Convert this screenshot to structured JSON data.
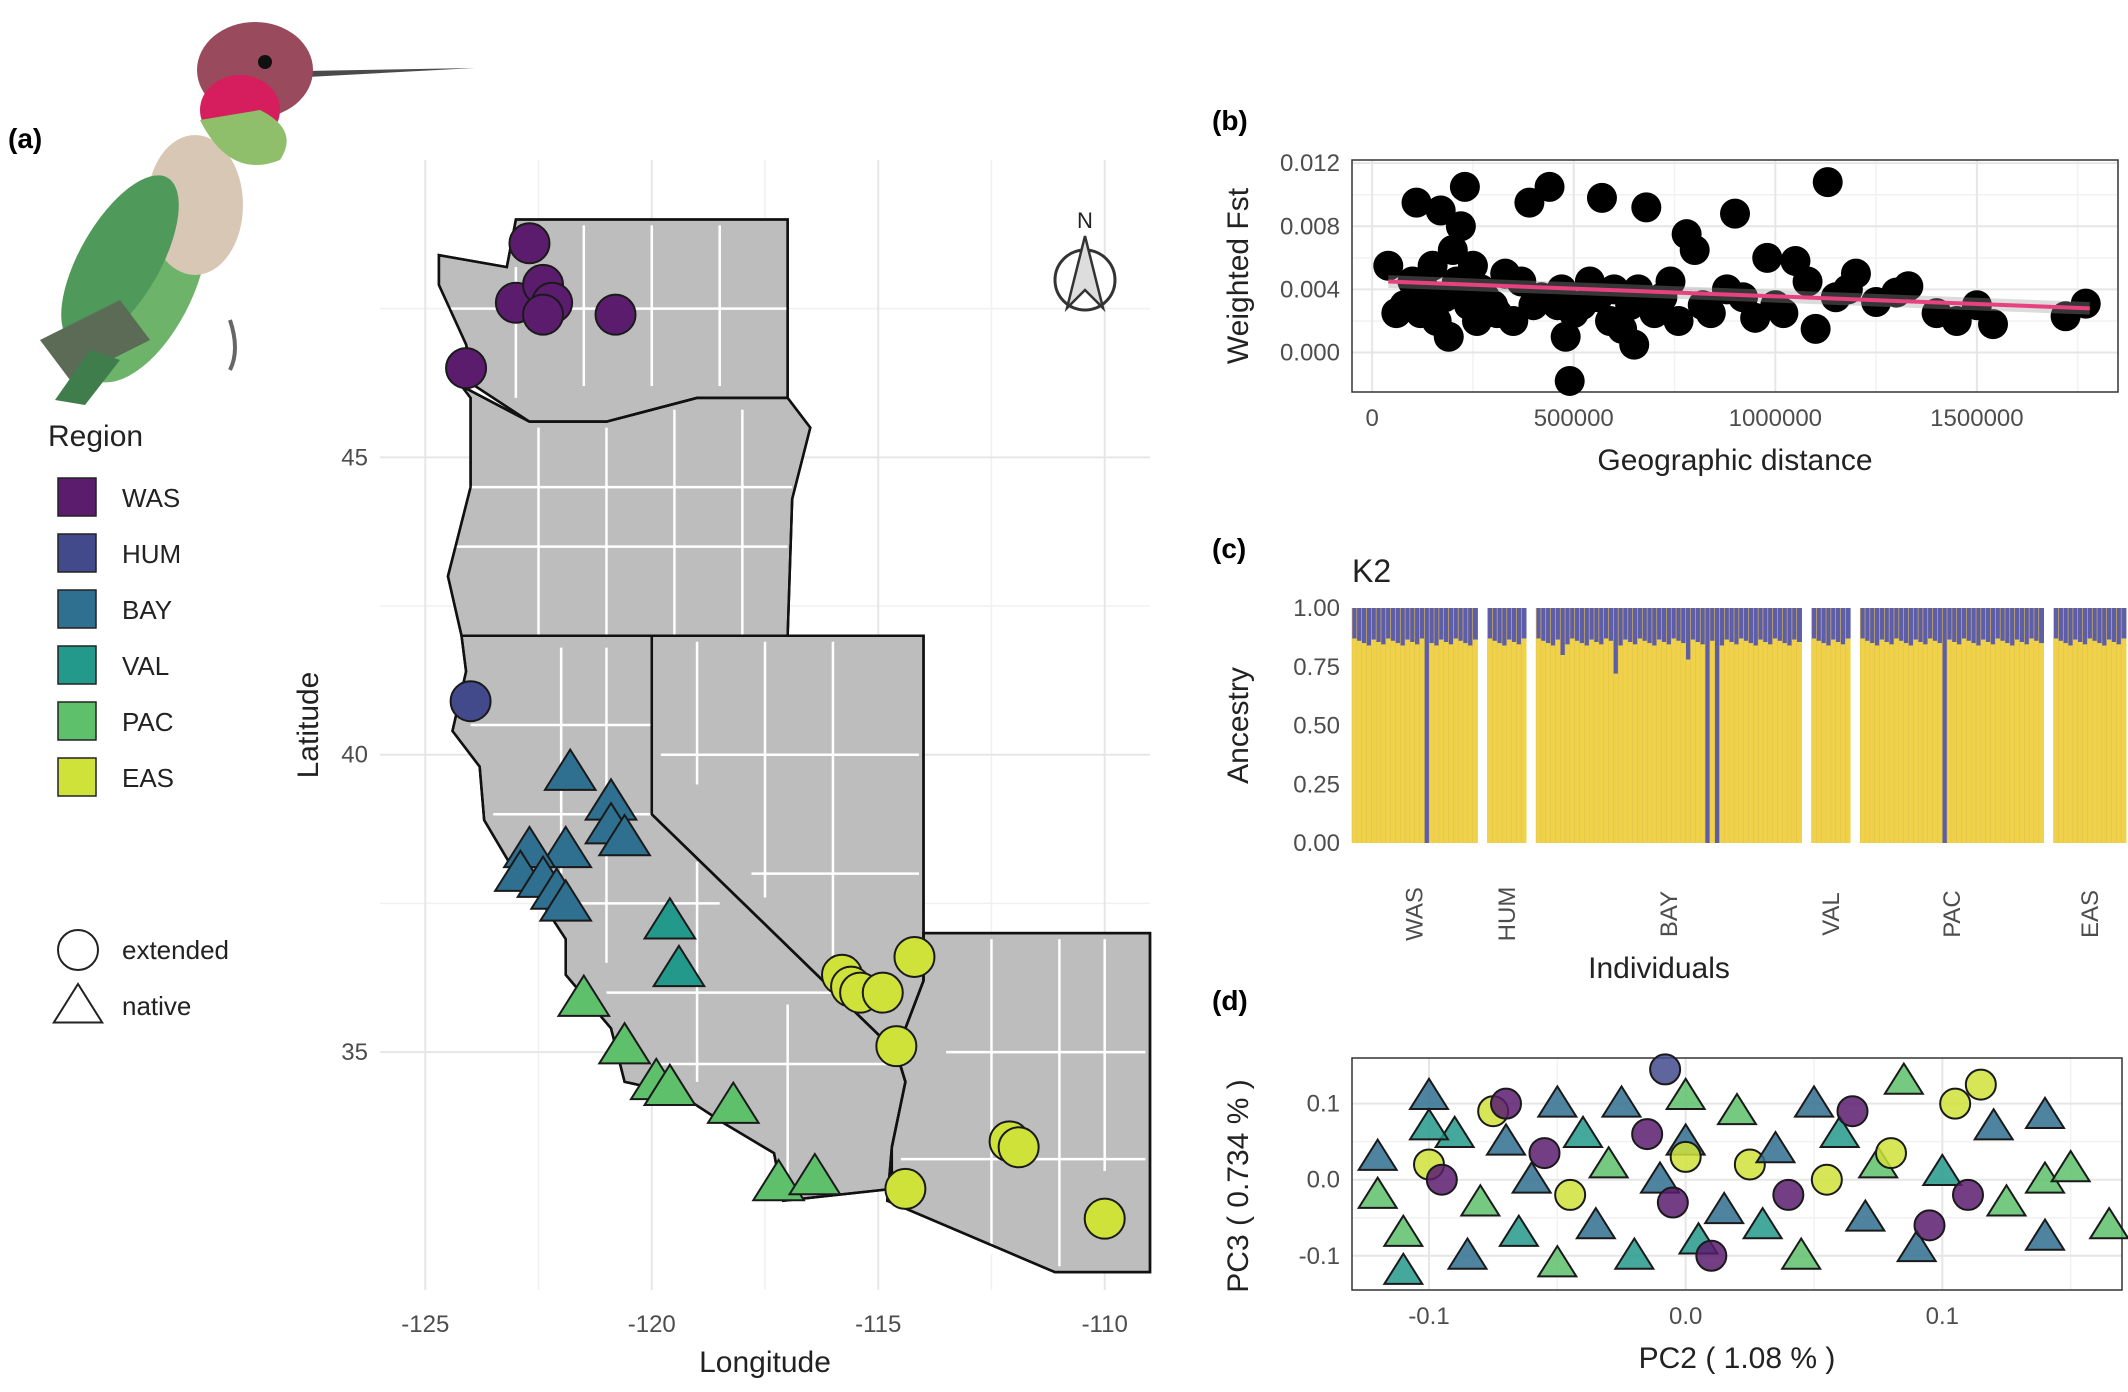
{
  "panels": {
    "a_label": "(a)",
    "b_label": "(b)",
    "c_label": "(c)",
    "d_label": "(d)"
  },
  "colors": {
    "WAS": "#5b1c6e",
    "HUM": "#434a8c",
    "BAY": "#2f6f8f",
    "VAL": "#23998b",
    "PAC": "#5ec06a",
    "EAS": "#cfe23a",
    "ancestry_yellow": "#f0d24a",
    "ancestry_purple": "#5e5ea8",
    "trend": "#e8417f",
    "map_fill": "#bdbdbd"
  },
  "legend": {
    "title": "Region",
    "regions": [
      "WAS",
      "HUM",
      "BAY",
      "VAL",
      "PAC",
      "EAS"
    ],
    "shapes": [
      {
        "shape": "circle",
        "label": "extended"
      },
      {
        "shape": "triangle",
        "label": "native"
      }
    ]
  },
  "chart_data": [
    {
      "id": "a",
      "type": "scatter",
      "title": "",
      "xlabel": "Longitude",
      "ylabel": "Latitude",
      "xlim": [
        -126,
        -109
      ],
      "ylim": [
        31,
        50
      ],
      "x_ticks": [
        -125,
        -120,
        -115,
        -110
      ],
      "y_ticks": [
        35,
        40,
        45
      ],
      "compass_label": "N",
      "points": [
        {
          "region": "WAS",
          "shape": "circle",
          "lon": -122.7,
          "lat": 48.6
        },
        {
          "region": "WAS",
          "shape": "circle",
          "lon": -123.0,
          "lat": 47.6
        },
        {
          "region": "WAS",
          "shape": "circle",
          "lon": -122.4,
          "lat": 47.9
        },
        {
          "region": "WAS",
          "shape": "circle",
          "lon": -122.2,
          "lat": 47.6
        },
        {
          "region": "WAS",
          "shape": "circle",
          "lon": -122.4,
          "lat": 47.4
        },
        {
          "region": "WAS",
          "shape": "circle",
          "lon": -120.8,
          "lat": 47.4
        },
        {
          "region": "WAS",
          "shape": "circle",
          "lon": -124.1,
          "lat": 46.5
        },
        {
          "region": "HUM",
          "shape": "circle",
          "lon": -124.0,
          "lat": 40.9
        },
        {
          "region": "BAY",
          "shape": "triangle",
          "lon": -121.8,
          "lat": 39.7
        },
        {
          "region": "BAY",
          "shape": "triangle",
          "lon": -120.9,
          "lat": 39.2
        },
        {
          "region": "BAY",
          "shape": "triangle",
          "lon": -120.9,
          "lat": 38.8
        },
        {
          "region": "BAY",
          "shape": "triangle",
          "lon": -120.6,
          "lat": 38.6
        },
        {
          "region": "BAY",
          "shape": "triangle",
          "lon": -121.9,
          "lat": 38.4
        },
        {
          "region": "BAY",
          "shape": "triangle",
          "lon": -122.7,
          "lat": 38.4
        },
        {
          "region": "BAY",
          "shape": "triangle",
          "lon": -122.9,
          "lat": 38.0
        },
        {
          "region": "BAY",
          "shape": "triangle",
          "lon": -122.4,
          "lat": 37.9
        },
        {
          "region": "BAY",
          "shape": "triangle",
          "lon": -122.1,
          "lat": 37.7
        },
        {
          "region": "BAY",
          "shape": "triangle",
          "lon": -121.9,
          "lat": 37.5
        },
        {
          "region": "VAL",
          "shape": "triangle",
          "lon": -119.6,
          "lat": 37.2
        },
        {
          "region": "VAL",
          "shape": "triangle",
          "lon": -119.4,
          "lat": 36.4
        },
        {
          "region": "PAC",
          "shape": "triangle",
          "lon": -121.5,
          "lat": 35.9
        },
        {
          "region": "PAC",
          "shape": "triangle",
          "lon": -120.6,
          "lat": 35.1
        },
        {
          "region": "PAC",
          "shape": "triangle",
          "lon": -119.9,
          "lat": 34.5
        },
        {
          "region": "PAC",
          "shape": "triangle",
          "lon": -119.6,
          "lat": 34.4
        },
        {
          "region": "PAC",
          "shape": "triangle",
          "lon": -118.2,
          "lat": 34.1
        },
        {
          "region": "PAC",
          "shape": "triangle",
          "lon": -117.2,
          "lat": 32.8
        },
        {
          "region": "PAC",
          "shape": "triangle",
          "lon": -116.4,
          "lat": 32.9
        },
        {
          "region": "EAS",
          "shape": "circle",
          "lon": -115.8,
          "lat": 36.3
        },
        {
          "region": "EAS",
          "shape": "circle",
          "lon": -115.6,
          "lat": 36.1
        },
        {
          "region": "EAS",
          "shape": "circle",
          "lon": -115.4,
          "lat": 36.0
        },
        {
          "region": "EAS",
          "shape": "circle",
          "lon": -114.9,
          "lat": 36.0
        },
        {
          "region": "EAS",
          "shape": "circle",
          "lon": -114.2,
          "lat": 36.6
        },
        {
          "region": "EAS",
          "shape": "circle",
          "lon": -114.6,
          "lat": 35.1
        },
        {
          "region": "EAS",
          "shape": "circle",
          "lon": -112.1,
          "lat": 33.5
        },
        {
          "region": "EAS",
          "shape": "circle",
          "lon": -111.9,
          "lat": 33.4
        },
        {
          "region": "EAS",
          "shape": "circle",
          "lon": -114.4,
          "lat": 32.7
        },
        {
          "region": "EAS",
          "shape": "circle",
          "lon": -110.0,
          "lat": 32.2
        }
      ]
    },
    {
      "id": "b",
      "type": "scatter",
      "title": "",
      "xlabel": "Geographic distance",
      "ylabel": "Weighted Fst",
      "xlim": [
        -50000,
        1850000
      ],
      "ylim": [
        -0.0025,
        0.0122
      ],
      "x_ticks": [
        0,
        500000,
        1000000,
        1500000
      ],
      "x_tick_labels": [
        "0",
        "500000",
        "1000000",
        "1500000"
      ],
      "y_ticks": [
        0.0,
        0.004,
        0.008,
        0.012
      ],
      "y_tick_labels": [
        "0.000",
        "0.004",
        "0.008",
        "0.012"
      ],
      "trend": {
        "x": [
          40000,
          1780000
        ],
        "y": [
          0.0045,
          0.0028
        ]
      },
      "points": [
        [
          40000,
          0.0055
        ],
        [
          60000,
          0.0025
        ],
        [
          80000,
          0.003
        ],
        [
          100000,
          0.0045
        ],
        [
          110000,
          0.0095
        ],
        [
          120000,
          0.0025
        ],
        [
          130000,
          0.004
        ],
        [
          150000,
          0.0055
        ],
        [
          160000,
          0.002
        ],
        [
          170000,
          0.009
        ],
        [
          180000,
          0.0035
        ],
        [
          190000,
          0.001
        ],
        [
          200000,
          0.0065
        ],
        [
          210000,
          0.0045
        ],
        [
          220000,
          0.008
        ],
        [
          230000,
          0.0105
        ],
        [
          240000,
          0.003
        ],
        [
          250000,
          0.0055
        ],
        [
          260000,
          0.002
        ],
        [
          270000,
          0.004
        ],
        [
          280000,
          0.0035
        ],
        [
          300000,
          0.003
        ],
        [
          310000,
          0.0025
        ],
        [
          330000,
          0.005
        ],
        [
          350000,
          0.002
        ],
        [
          370000,
          0.0045
        ],
        [
          390000,
          0.0095
        ],
        [
          400000,
          0.003
        ],
        [
          420000,
          0.0035
        ],
        [
          440000,
          0.0105
        ],
        [
          460000,
          0.003
        ],
        [
          470000,
          0.004
        ],
        [
          480000,
          0.001
        ],
        [
          490000,
          -0.0018
        ],
        [
          500000,
          0.0025
        ],
        [
          520000,
          0.003
        ],
        [
          540000,
          0.0045
        ],
        [
          560000,
          0.0035
        ],
        [
          570000,
          0.0098
        ],
        [
          590000,
          0.002
        ],
        [
          600000,
          0.004
        ],
        [
          620000,
          0.0015
        ],
        [
          640000,
          0.003
        ],
        [
          650000,
          0.0005
        ],
        [
          660000,
          0.004
        ],
        [
          680000,
          0.0092
        ],
        [
          700000,
          0.0025
        ],
        [
          720000,
          0.0035
        ],
        [
          740000,
          0.0045
        ],
        [
          760000,
          0.002
        ],
        [
          780000,
          0.0075
        ],
        [
          800000,
          0.0065
        ],
        [
          820000,
          0.003
        ],
        [
          840000,
          0.0025
        ],
        [
          880000,
          0.004
        ],
        [
          900000,
          0.0088
        ],
        [
          920000,
          0.0035
        ],
        [
          950000,
          0.0022
        ],
        [
          980000,
          0.006
        ],
        [
          1000000,
          0.003
        ],
        [
          1020000,
          0.0025
        ],
        [
          1050000,
          0.0058
        ],
        [
          1080000,
          0.0045
        ],
        [
          1100000,
          0.0015
        ],
        [
          1130000,
          0.0108
        ],
        [
          1150000,
          0.0035
        ],
        [
          1180000,
          0.004
        ],
        [
          1200000,
          0.005
        ],
        [
          1250000,
          0.0032
        ],
        [
          1300000,
          0.0038
        ],
        [
          1330000,
          0.0042
        ],
        [
          1400000,
          0.0025
        ],
        [
          1450000,
          0.002
        ],
        [
          1500000,
          0.003
        ],
        [
          1540000,
          0.0018
        ],
        [
          1720000,
          0.0023
        ],
        [
          1770000,
          0.0031
        ]
      ]
    },
    {
      "id": "c",
      "type": "bar",
      "title": "K2",
      "xlabel": "Individuals",
      "ylabel": "Ancestry",
      "ylim": [
        0,
        1
      ],
      "y_ticks": [
        0.0,
        0.25,
        0.5,
        0.75,
        1.0
      ],
      "y_tick_labels": [
        "0.00",
        "0.25",
        "0.50",
        "0.75",
        "1.00"
      ],
      "series": [
        {
          "name": "",
          "values_note": ""
        }
      ],
      "groups": [
        {
          "label": "WAS",
          "n": 26,
          "outliers": {
            "15": 0.0
          }
        },
        {
          "label": "HUM",
          "n": 8,
          "outliers": {}
        },
        {
          "label": "BAY",
          "n": 55,
          "outliers": {
            "5": 0.8,
            "16": 0.72,
            "31": 0.78,
            "37": 0.0,
            "35": 0.0
          }
        },
        {
          "label": "VAL",
          "n": 8,
          "outliers": {}
        },
        {
          "label": "PAC",
          "n": 38,
          "outliers": {
            "17": 0.0
          }
        },
        {
          "label": "EAS",
          "n": 15,
          "outliers": {}
        }
      ],
      "base_yellow": 0.87
    },
    {
      "id": "d",
      "type": "scatter",
      "title": "",
      "xlabel": "PC2 ( 1.08 % )",
      "ylabel": "PC3 ( 0.734 % )",
      "xlim": [
        -0.13,
        0.17
      ],
      "ylim": [
        -0.145,
        0.16
      ],
      "x_ticks": [
        -0.1,
        0.0,
        0.1
      ],
      "x_tick_labels": [
        "-0.1",
        "0.0",
        "0.1"
      ],
      "y_ticks": [
        -0.1,
        0.0,
        0.1
      ],
      "y_tick_labels": [
        "-0.1",
        "0.0",
        "0.1"
      ],
      "points": [
        {
          "r": "BAY",
          "s": "triangle",
          "x": -0.12,
          "y": 0.03
        },
        {
          "r": "PAC",
          "s": "triangle",
          "x": -0.12,
          "y": -0.02
        },
        {
          "r": "VAL",
          "s": "triangle",
          "x": -0.11,
          "y": -0.12
        },
        {
          "r": "PAC",
          "s": "triangle",
          "x": -0.11,
          "y": -0.07
        },
        {
          "r": "BAY",
          "s": "triangle",
          "x": -0.1,
          "y": 0.11
        },
        {
          "r": "EAS",
          "s": "circle",
          "x": -0.1,
          "y": 0.02
        },
        {
          "r": "WAS",
          "s": "circle",
          "x": -0.095,
          "y": 0.0
        },
        {
          "r": "VAL",
          "s": "triangle",
          "x": -0.09,
          "y": 0.06
        },
        {
          "r": "BAY",
          "s": "triangle",
          "x": -0.085,
          "y": -0.1
        },
        {
          "r": "PAC",
          "s": "triangle",
          "x": -0.08,
          "y": -0.03
        },
        {
          "r": "EAS",
          "s": "circle",
          "x": -0.075,
          "y": 0.09
        },
        {
          "r": "BAY",
          "s": "triangle",
          "x": -0.07,
          "y": 0.05
        },
        {
          "r": "WAS",
          "s": "circle",
          "x": -0.07,
          "y": 0.1
        },
        {
          "r": "VAL",
          "s": "triangle",
          "x": -0.065,
          "y": -0.07
        },
        {
          "r": "BAY",
          "s": "triangle",
          "x": -0.06,
          "y": 0.0
        },
        {
          "r": "WAS",
          "s": "circle",
          "x": -0.055,
          "y": 0.035
        },
        {
          "r": "PAC",
          "s": "triangle",
          "x": -0.05,
          "y": -0.11
        },
        {
          "r": "BAY",
          "s": "triangle",
          "x": -0.05,
          "y": 0.1
        },
        {
          "r": "EAS",
          "s": "circle",
          "x": -0.045,
          "y": -0.02
        },
        {
          "r": "VAL",
          "s": "triangle",
          "x": -0.04,
          "y": 0.06
        },
        {
          "r": "BAY",
          "s": "triangle",
          "x": -0.035,
          "y": -0.06
        },
        {
          "r": "PAC",
          "s": "triangle",
          "x": -0.03,
          "y": 0.02
        },
        {
          "r": "BAY",
          "s": "triangle",
          "x": -0.025,
          "y": 0.1
        },
        {
          "r": "VAL",
          "s": "triangle",
          "x": -0.02,
          "y": -0.1
        },
        {
          "r": "WAS",
          "s": "circle",
          "x": -0.015,
          "y": 0.06
        },
        {
          "r": "BAY",
          "s": "triangle",
          "x": -0.01,
          "y": 0.0
        },
        {
          "r": "WAS",
          "s": "circle",
          "x": -0.005,
          "y": -0.03
        },
        {
          "r": "PAC",
          "s": "triangle",
          "x": 0.0,
          "y": 0.11
        },
        {
          "r": "BAY",
          "s": "triangle",
          "x": 0.0,
          "y": 0.05
        },
        {
          "r": "EAS",
          "s": "circle",
          "x": 0.0,
          "y": 0.03
        },
        {
          "r": "HUM",
          "s": "circle",
          "x": -0.008,
          "y": 0.145
        },
        {
          "r": "VAL",
          "s": "triangle",
          "x": 0.005,
          "y": -0.08
        },
        {
          "r": "WAS",
          "s": "circle",
          "x": 0.01,
          "y": -0.1
        },
        {
          "r": "BAY",
          "s": "triangle",
          "x": 0.015,
          "y": -0.04
        },
        {
          "r": "PAC",
          "s": "triangle",
          "x": 0.02,
          "y": 0.09
        },
        {
          "r": "EAS",
          "s": "circle",
          "x": 0.025,
          "y": 0.02
        },
        {
          "r": "VAL",
          "s": "triangle",
          "x": 0.03,
          "y": -0.06
        },
        {
          "r": "BAY",
          "s": "triangle",
          "x": 0.035,
          "y": 0.04
        },
        {
          "r": "WAS",
          "s": "circle",
          "x": 0.04,
          "y": -0.02
        },
        {
          "r": "PAC",
          "s": "triangle",
          "x": 0.045,
          "y": -0.1
        },
        {
          "r": "BAY",
          "s": "triangle",
          "x": 0.05,
          "y": 0.1
        },
        {
          "r": "EAS",
          "s": "circle",
          "x": 0.055,
          "y": 0.0
        },
        {
          "r": "VAL",
          "s": "triangle",
          "x": 0.06,
          "y": 0.06
        },
        {
          "r": "WAS",
          "s": "circle",
          "x": 0.065,
          "y": 0.09
        },
        {
          "r": "BAY",
          "s": "triangle",
          "x": 0.07,
          "y": -0.05
        },
        {
          "r": "PAC",
          "s": "triangle",
          "x": 0.075,
          "y": 0.02
        },
        {
          "r": "EAS",
          "s": "circle",
          "x": 0.08,
          "y": 0.035
        },
        {
          "r": "PAC",
          "s": "triangle",
          "x": 0.085,
          "y": 0.13
        },
        {
          "r": "BAY",
          "s": "triangle",
          "x": 0.09,
          "y": -0.09
        },
        {
          "r": "WAS",
          "s": "circle",
          "x": 0.095,
          "y": -0.06
        },
        {
          "r": "VAL",
          "s": "triangle",
          "x": 0.1,
          "y": 0.01
        },
        {
          "r": "EAS",
          "s": "circle",
          "x": 0.105,
          "y": 0.1
        },
        {
          "r": "WAS",
          "s": "circle",
          "x": 0.11,
          "y": -0.02
        },
        {
          "r": "EAS",
          "s": "circle",
          "x": 0.115,
          "y": 0.125
        },
        {
          "r": "BAY",
          "s": "triangle",
          "x": 0.12,
          "y": 0.07
        },
        {
          "r": "PAC",
          "s": "triangle",
          "x": 0.125,
          "y": -0.03
        },
        {
          "r": "BAY",
          "s": "triangle",
          "x": 0.14,
          "y": 0.085
        },
        {
          "r": "PAC",
          "s": "triangle",
          "x": 0.14,
          "y": 0.0
        },
        {
          "r": "BAY",
          "s": "triangle",
          "x": 0.14,
          "y": -0.075
        },
        {
          "r": "PAC",
          "s": "triangle",
          "x": 0.15,
          "y": 0.015
        },
        {
          "r": "PAC",
          "s": "triangle",
          "x": 0.165,
          "y": -0.06
        },
        {
          "r": "VAL",
          "s": "triangle",
          "x": -0.1,
          "y": 0.07
        }
      ]
    }
  ]
}
